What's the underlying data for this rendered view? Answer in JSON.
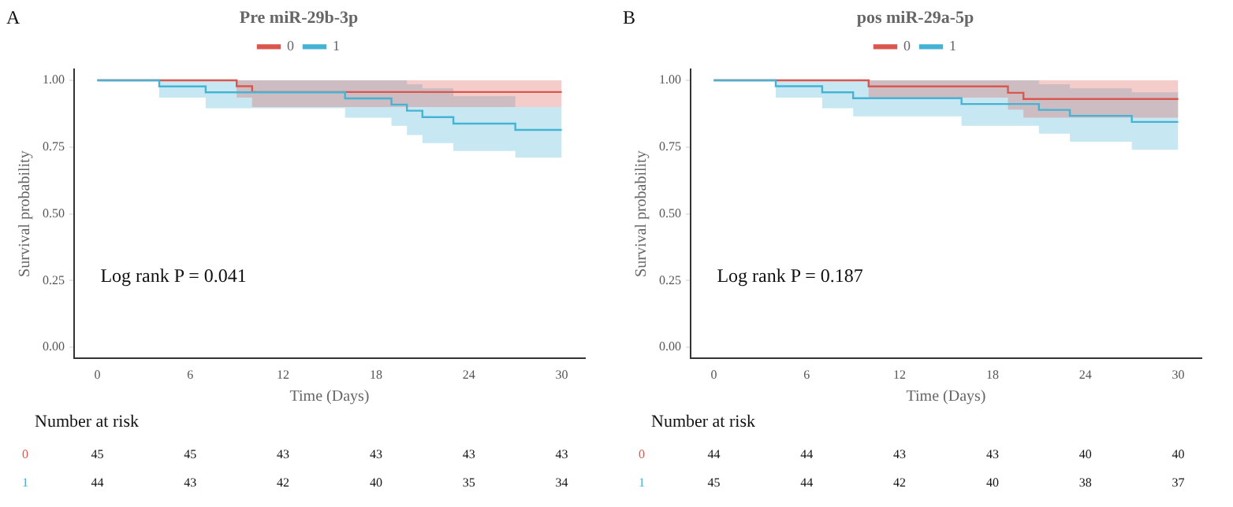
{
  "chart_data": [
    {
      "type": "step",
      "title": null,
      "legend_title": "Pre miR-29b-3p",
      "legend": "top",
      "xlabel": "Time (Days)",
      "ylabel": "Survival probability",
      "grid": false,
      "xlim": [
        -1.5,
        31.5
      ],
      "xticks": [
        0,
        6,
        12,
        18,
        24,
        30
      ],
      "ylim": [
        -0.04,
        1.04
      ],
      "yticks": [
        {
          "value": 0,
          "label": "0.00"
        },
        {
          "value": 0.25,
          "label": "0.25"
        },
        {
          "value": 0.5,
          "label": "0.50"
        },
        {
          "value": 0.75,
          "label": "0.75"
        },
        {
          "value": 1,
          "label": "1.00"
        }
      ],
      "series": [
        {
          "name": "0",
          "color": "#d9574e",
          "x": [
            0,
            9,
            10,
            30
          ],
          "values": [
            1,
            0.978,
            0.956,
            0.956
          ],
          "lower": [
            1,
            0.935,
            0.9,
            0.9
          ],
          "upper": [
            1,
            1,
            1,
            1
          ]
        },
        {
          "name": "1",
          "color": "#45b3d3",
          "x": [
            0,
            4,
            7,
            16,
            19,
            20,
            21,
            23,
            27,
            30
          ],
          "values": [
            1,
            0.977,
            0.955,
            0.932,
            0.909,
            0.886,
            0.862,
            0.838,
            0.814,
            0.814
          ],
          "lower": [
            1,
            0.935,
            0.895,
            0.86,
            0.83,
            0.795,
            0.765,
            0.735,
            0.71,
            0.71
          ],
          "upper": [
            1,
            1,
            1,
            1,
            1,
            0.985,
            0.97,
            0.94,
            0.9,
            0.9
          ]
        }
      ],
      "annotations": [
        "A",
        "Log rank P = 0.041",
        "Number at risk",
        "0",
        "45",
        "45",
        "43",
        "43",
        "43",
        "43",
        "1",
        "44",
        "43",
        "42",
        "40",
        "35",
        "34"
      ]
    },
    {
      "type": "step",
      "title": null,
      "legend_title": "pos miR-29a-5p",
      "legend": "top",
      "xlabel": "Time (Days)",
      "ylabel": "Survival probability",
      "grid": false,
      "xlim": [
        -1.5,
        31.5
      ],
      "xticks": [
        0,
        6,
        12,
        18,
        24,
        30
      ],
      "ylim": [
        -0.04,
        1.04
      ],
      "yticks": [
        {
          "value": 0,
          "label": "0.00"
        },
        {
          "value": 0.25,
          "label": "0.25"
        },
        {
          "value": 0.5,
          "label": "0.50"
        },
        {
          "value": 0.75,
          "label": "0.75"
        },
        {
          "value": 1,
          "label": "1.00"
        }
      ],
      "series": [
        {
          "name": "0",
          "color": "#d9574e",
          "x": [
            0,
            10,
            19,
            20,
            30
          ],
          "values": [
            1,
            0.977,
            0.953,
            0.93,
            0.93
          ],
          "lower": [
            1,
            0.935,
            0.89,
            0.86,
            0.86
          ],
          "upper": [
            1,
            1,
            1,
            1,
            1
          ]
        },
        {
          "name": "1",
          "color": "#45b3d3",
          "x": [
            0,
            4,
            7,
            9,
            16,
            21,
            23,
            27,
            30
          ],
          "values": [
            1,
            0.978,
            0.955,
            0.933,
            0.911,
            0.889,
            0.867,
            0.844,
            0.844
          ],
          "lower": [
            1,
            0.935,
            0.895,
            0.865,
            0.83,
            0.8,
            0.77,
            0.74,
            0.74
          ],
          "upper": [
            1,
            1,
            1,
            1,
            1,
            0.985,
            0.97,
            0.955,
            0.955
          ]
        }
      ],
      "annotations": [
        "B",
        "Log rank P = 0.187",
        "Number at risk",
        "0",
        "44",
        "44",
        "43",
        "43",
        "40",
        "40",
        "1",
        "45",
        "44",
        "42",
        "40",
        "38",
        "37"
      ]
    }
  ]
}
